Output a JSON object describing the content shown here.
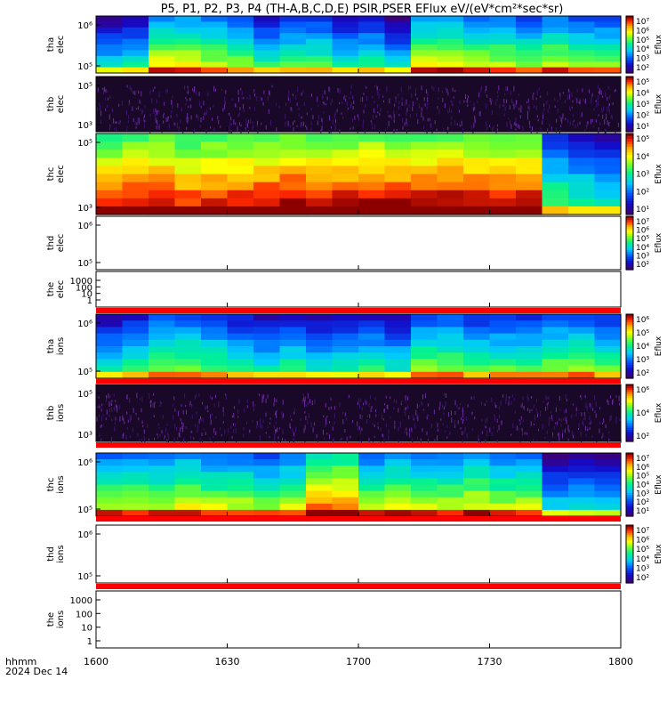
{
  "title": "P5, P1, P2, P3, P4 (TH-A,B,C,D,E) PSIR,PSER EFlux eV/(eV*cm²*sec*sr)",
  "footer": {
    "time_label": "hhmm",
    "date_label": "2024 Dec 14"
  },
  "colorbar_label": "Eflux",
  "chart_data": [
    {
      "type": "heatmap",
      "panel": "tha-elec",
      "ylabel": [
        "tha",
        "elec"
      ],
      "y_tick_labels": [
        "10⁵",
        "10⁶"
      ],
      "colorbar_tick_labels": [
        "10⁷",
        "10⁶",
        "10⁵",
        "10⁴",
        "10³",
        "10²"
      ],
      "has_colorbar": true,
      "intensity_columns": [
        0.25,
        0.3,
        0.55,
        0.55,
        0.5,
        0.45,
        0.35,
        0.4,
        0.4,
        0.3,
        0.35,
        0.25,
        0.55,
        0.55,
        0.5,
        0.5,
        0.45,
        0.5,
        0.45,
        0.45
      ]
    },
    {
      "type": "heatmap",
      "panel": "thb-elec",
      "ylabel": [
        "thb",
        "elec"
      ],
      "y_tick_labels": [
        "10³",
        "10⁵"
      ],
      "colorbar_tick_labels": [
        "10⁵",
        "10⁴",
        "10³",
        "10²",
        "10¹"
      ],
      "has_colorbar": true,
      "noise": true
    },
    {
      "type": "heatmap",
      "panel": "thc-elec",
      "ylabel": [
        "thc",
        "elec"
      ],
      "y_tick_labels": [
        "10³",
        "10⁵"
      ],
      "colorbar_tick_labels": [
        "10⁵",
        "10⁴",
        "10³",
        "10²",
        "10¹"
      ],
      "has_colorbar": true,
      "intensity_columns": [
        0.75,
        0.8,
        0.8,
        0.75,
        0.78,
        0.78,
        0.8,
        0.82,
        0.8,
        0.8,
        0.82,
        0.8,
        0.8,
        0.82,
        0.8,
        0.8,
        0.8,
        0.4,
        0.35,
        0.3
      ]
    },
    {
      "type": "heatmap",
      "panel": "thd-elec",
      "ylabel": [
        "thd",
        "elec"
      ],
      "y_tick_labels": [
        "10⁵",
        "10⁶"
      ],
      "colorbar_tick_labels": [
        "10⁷",
        "10⁶",
        "10⁵",
        "10⁴",
        "10³",
        "10²"
      ],
      "has_colorbar": true,
      "empty": true
    },
    {
      "type": "heatmap",
      "panel": "the-elec",
      "ylabel": [
        "the",
        "elec"
      ],
      "y_tick_labels": [
        "1",
        "10",
        "100",
        "1000"
      ],
      "has_colorbar": false,
      "empty": true
    },
    {
      "type": "heatmap",
      "panel": "tha-ions",
      "ylabel": [
        "tha",
        "ions"
      ],
      "y_tick_labels": [
        "10⁵",
        "10⁶"
      ],
      "colorbar_tick_labels": [
        "10⁶",
        "10⁵",
        "10⁴",
        "10³",
        "10²"
      ],
      "has_colorbar": true,
      "intensity_columns": [
        0.3,
        0.35,
        0.45,
        0.45,
        0.4,
        0.35,
        0.3,
        0.35,
        0.3,
        0.3,
        0.35,
        0.3,
        0.45,
        0.45,
        0.4,
        0.4,
        0.4,
        0.45,
        0.45,
        0.4
      ]
    },
    {
      "type": "heatmap",
      "panel": "thb-ions",
      "ylabel": [
        "thb",
        "ions"
      ],
      "y_tick_labels": [
        "10³",
        "10⁵"
      ],
      "colorbar_tick_labels": [
        "10⁶",
        "10⁴",
        "10²"
      ],
      "has_colorbar": true,
      "noise": true
    },
    {
      "type": "heatmap",
      "panel": "thc-ions",
      "ylabel": [
        "thc",
        "ions"
      ],
      "y_tick_labels": [
        "10⁵",
        "10⁶"
      ],
      "colorbar_tick_labels": [
        "10⁷",
        "10⁶",
        "10⁵",
        "10⁴",
        "10³",
        "10²",
        "10¹"
      ],
      "has_colorbar": true,
      "intensity_columns": [
        0.5,
        0.5,
        0.5,
        0.55,
        0.5,
        0.5,
        0.45,
        0.5,
        0.7,
        0.7,
        0.5,
        0.55,
        0.5,
        0.5,
        0.55,
        0.5,
        0.5,
        0.25,
        0.25,
        0.25
      ]
    },
    {
      "type": "heatmap",
      "panel": "thd-ions",
      "ylabel": [
        "thd",
        "ions"
      ],
      "y_tick_labels": [
        "10⁵",
        "10⁶"
      ],
      "colorbar_tick_labels": [
        "10⁷",
        "10⁶",
        "10⁵",
        "10⁴",
        "10³",
        "10²"
      ],
      "has_colorbar": true,
      "empty": true
    },
    {
      "type": "heatmap",
      "panel": "the-ions",
      "ylabel": [
        "the",
        "ions"
      ],
      "y_tick_labels": [
        "1",
        "10",
        "100",
        "1000"
      ],
      "has_colorbar": false,
      "empty": true
    }
  ],
  "x_axis": {
    "tick_labels": [
      "1600",
      "1630",
      "1700",
      "1730",
      "1800"
    ]
  }
}
